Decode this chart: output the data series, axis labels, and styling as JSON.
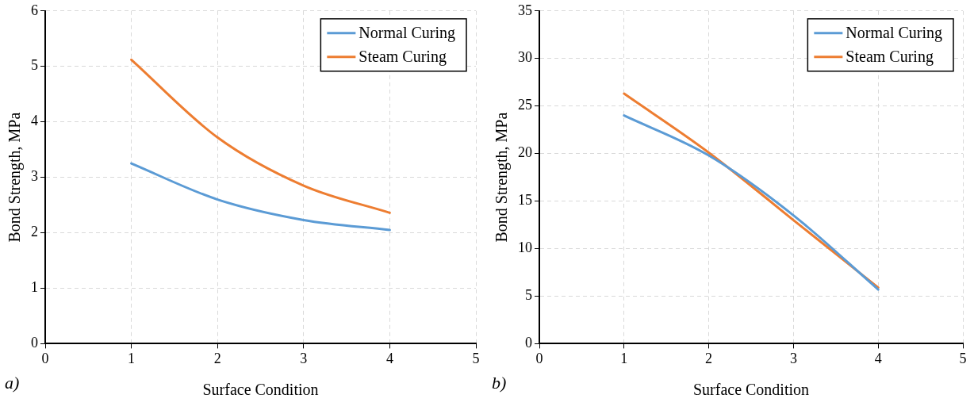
{
  "chart_data": [
    {
      "type": "line",
      "xlabel": "Surface Condition",
      "ylabel": "Bond Strength, MPa",
      "annotations": [
        "a)"
      ],
      "x": [
        1,
        2,
        3,
        4
      ],
      "series": [
        {
          "name": "Normal Curing",
          "color": "#5b9bd5",
          "values": [
            3.25,
            2.6,
            2.23,
            2.05
          ]
        },
        {
          "name": "Steam Curing",
          "color": "#ed7d31",
          "values": [
            5.12,
            3.72,
            2.85,
            2.36
          ]
        }
      ],
      "xlim": [
        0,
        5
      ],
      "xticks": [
        0,
        1,
        2,
        3,
        4,
        5
      ],
      "ylim": [
        0,
        6
      ],
      "yticks": [
        0,
        1,
        2,
        3,
        4,
        5,
        6
      ],
      "grid": true,
      "legend": "top right",
      "marker": "none",
      "line_style": "solid"
    },
    {
      "type": "line",
      "xlabel": "Surface Condition",
      "ylabel": "Bond Strength, MPa",
      "annotations": [
        "b)"
      ],
      "x": [
        1,
        2,
        3,
        4
      ],
      "series": [
        {
          "name": "Normal Curing",
          "color": "#5b9bd5",
          "values": [
            24,
            19.8,
            13.5,
            5.7
          ]
        },
        {
          "name": "Steam Curing",
          "color": "#ed7d31",
          "values": [
            26.3,
            20.1,
            13.0,
            5.9
          ]
        }
      ],
      "xlim": [
        0,
        5
      ],
      "xticks": [
        0,
        1,
        2,
        3,
        4,
        5
      ],
      "ylim": [
        0,
        35
      ],
      "yticks": [
        0,
        5,
        10,
        15,
        20,
        25,
        30,
        35
      ],
      "grid": true,
      "legend": "top right",
      "marker": "none",
      "line_style": "solid"
    }
  ]
}
